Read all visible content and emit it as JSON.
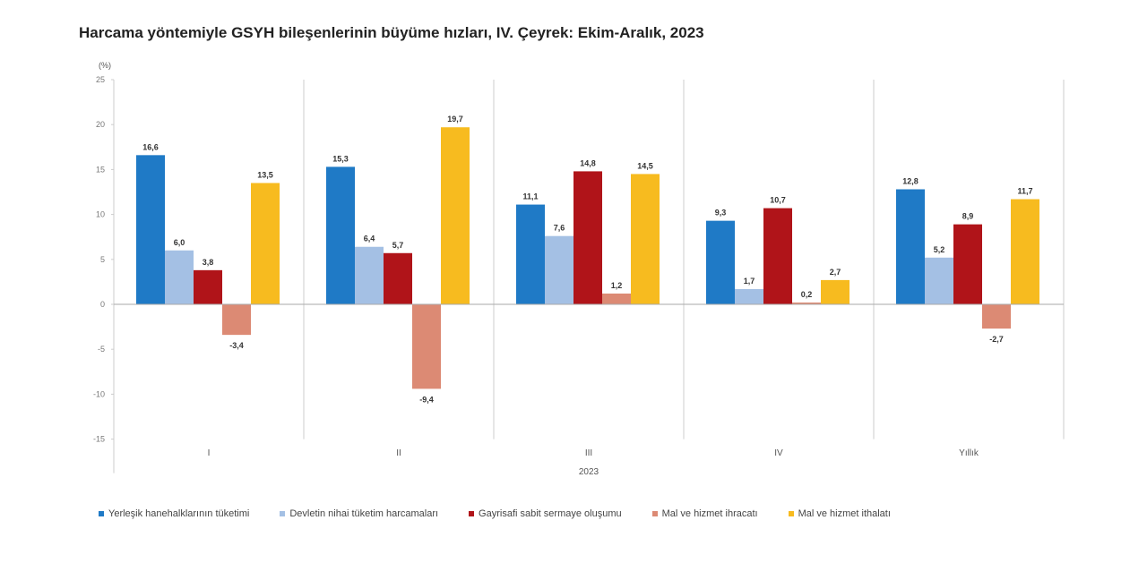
{
  "chart_data": {
    "type": "bar",
    "title": "Harcama yöntemiyle GSYH bileşenlerinin büyüme hızları, IV. Çeyrek: Ekim-Aralık, 2023",
    "ylabel": "(%)",
    "xlabel": "2023",
    "ylim": [
      -15,
      25
    ],
    "yticks": [
      25,
      20,
      15,
      10,
      5,
      0,
      -5,
      -10,
      -15
    ],
    "categories": [
      "I",
      "II",
      "III",
      "IV",
      "Yıllık"
    ],
    "grid": false,
    "legend_position": "bottom",
    "series": [
      {
        "name": "Yerleşik hanehalklarının tüketimi",
        "color": "#1f7ac6",
        "values": [
          16.6,
          15.3,
          11.1,
          9.3,
          12.8
        ]
      },
      {
        "name": "Devletin nihai tüketim harcamaları",
        "color": "#a4c0e4",
        "values": [
          6.0,
          6.4,
          7.6,
          1.7,
          5.2
        ]
      },
      {
        "name": "Gayrisafi sabit sermaye oluşumu",
        "color": "#b01419",
        "values": [
          3.8,
          5.7,
          14.8,
          10.7,
          8.9
        ]
      },
      {
        "name": "Mal ve hizmet ihracatı",
        "color": "#dc8a74",
        "values": [
          -3.4,
          -9.4,
          1.2,
          0.2,
          -2.7
        ]
      },
      {
        "name": "Mal ve hizmet ithalatı",
        "color": "#f7bb1f",
        "values": [
          13.5,
          19.7,
          14.5,
          2.7,
          11.7
        ]
      }
    ]
  }
}
